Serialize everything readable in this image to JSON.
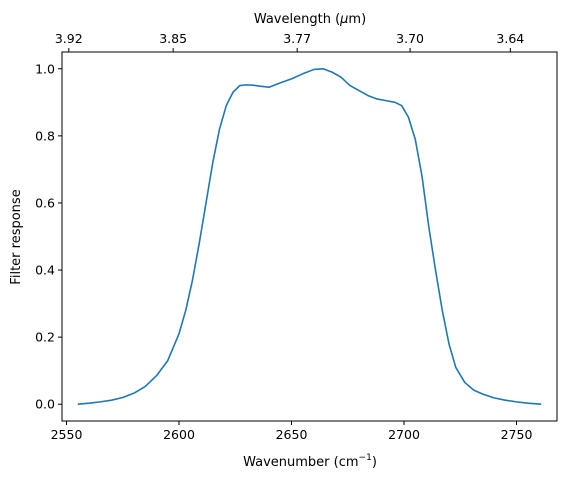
{
  "chart_data": {
    "type": "line",
    "xlabel": "Wavenumber (cm",
    "xlabel_sup": "−1",
    "xlabel_end": ")",
    "ylabel": "Filter response",
    "top_xlabel": "Wavelength (",
    "top_xlabel_mu": "μ",
    "top_xlabel_end": "m)",
    "xlim": [
      2548,
      2768
    ],
    "ylim": [
      -0.05,
      1.05
    ],
    "x_ticks": [
      2550,
      2600,
      2650,
      2700,
      2750
    ],
    "x_tick_labels": [
      "2550",
      "2600",
      "2650",
      "2700",
      "2750"
    ],
    "y_ticks": [
      0.0,
      0.2,
      0.4,
      0.6,
      0.8,
      1.0
    ],
    "y_tick_labels": [
      "0.0",
      "0.2",
      "0.4",
      "0.6",
      "0.8",
      "1.0"
    ],
    "top_ticks_um": [
      3.92,
      3.85,
      3.77,
      3.7,
      3.64
    ],
    "top_tick_labels": [
      "3.92",
      "3.85",
      "3.77",
      "3.70",
      "3.64"
    ],
    "grid": false,
    "line_color": "#1f77b4",
    "series": [
      {
        "x": [
          2555,
          2560,
          2565,
          2570,
          2575,
          2580,
          2585,
          2590,
          2595,
          2600,
          2603,
          2606,
          2609,
          2612,
          2615,
          2618,
          2621,
          2624,
          2627,
          2630,
          2633,
          2636,
          2640,
          2645,
          2650,
          2655,
          2660,
          2664,
          2668,
          2672,
          2676,
          2680,
          2684,
          2688,
          2692,
          2696,
          2699,
          2702,
          2705,
          2708,
          2711,
          2714,
          2717,
          2720,
          2723,
          2727,
          2731,
          2735,
          2740,
          2745,
          2750,
          2755,
          2761
        ],
        "y": [
          0.0,
          0.003,
          0.007,
          0.012,
          0.02,
          0.033,
          0.053,
          0.085,
          0.13,
          0.21,
          0.28,
          0.37,
          0.48,
          0.6,
          0.72,
          0.82,
          0.89,
          0.93,
          0.95,
          0.952,
          0.951,
          0.948,
          0.945,
          0.958,
          0.97,
          0.985,
          0.998,
          1.0,
          0.99,
          0.975,
          0.95,
          0.935,
          0.92,
          0.91,
          0.905,
          0.9,
          0.89,
          0.855,
          0.79,
          0.68,
          0.53,
          0.4,
          0.28,
          0.18,
          0.11,
          0.065,
          0.042,
          0.03,
          0.019,
          0.012,
          0.007,
          0.003,
          0.0
        ]
      }
    ]
  }
}
